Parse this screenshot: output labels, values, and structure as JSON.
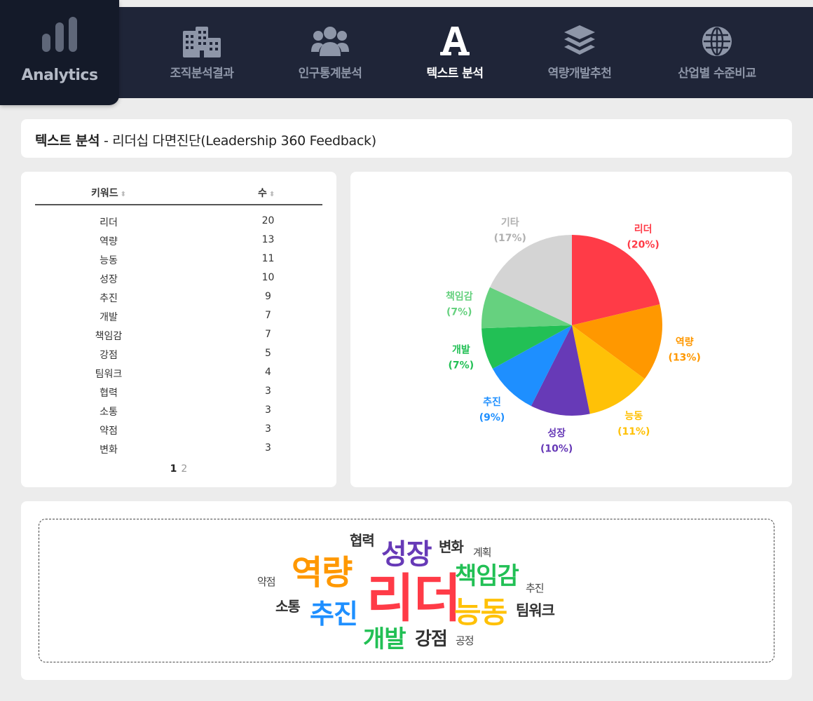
{
  "brand": {
    "label": "Analytics",
    "icon": "bar-chart-icon"
  },
  "nav": [
    {
      "label": "조직분석결과",
      "icon": "building-icon",
      "active": false
    },
    {
      "label": "인구통계분석",
      "icon": "users-icon",
      "active": false
    },
    {
      "label": "텍스트 분석",
      "icon": "font-letter-icon",
      "active": true
    },
    {
      "label": "역량개발추천",
      "icon": "layers-icon",
      "active": false
    },
    {
      "label": "산업별 수준비교",
      "icon": "globe-icon",
      "active": false
    }
  ],
  "page_title": {
    "bold": "텍스트 분석",
    "rest": " - 리더십 다면진단(Leadership 360 Feedback)"
  },
  "table": {
    "headers": {
      "keyword": "키워드",
      "count": "수"
    },
    "rows": [
      {
        "keyword": "리더",
        "count": "20"
      },
      {
        "keyword": "역량",
        "count": "13"
      },
      {
        "keyword": "능동",
        "count": "11"
      },
      {
        "keyword": "성장",
        "count": "10"
      },
      {
        "keyword": "추진",
        "count": "9"
      },
      {
        "keyword": "개발",
        "count": "7"
      },
      {
        "keyword": "책임감",
        "count": "7"
      },
      {
        "keyword": "강점",
        "count": "5"
      },
      {
        "keyword": "팀워크",
        "count": "4"
      },
      {
        "keyword": "협력",
        "count": "3"
      },
      {
        "keyword": "소통",
        "count": "3"
      },
      {
        "keyword": "약점",
        "count": "3"
      },
      {
        "keyword": "변화",
        "count": "3"
      }
    ],
    "pages": [
      "1",
      "2"
    ],
    "current_page": "1"
  },
  "chart_data": {
    "type": "pie",
    "title": "",
    "slices": [
      {
        "label": "리더",
        "pct_label": "(20%)",
        "value": 20,
        "color": "#ff3b47"
      },
      {
        "label": "역량",
        "pct_label": "(13%)",
        "value": 13,
        "color": "#ff9800"
      },
      {
        "label": "능동",
        "pct_label": "(11%)",
        "value": 11,
        "color": "#ffc107"
      },
      {
        "label": "성장",
        "pct_label": "(10%)",
        "value": 10,
        "color": "#673ab7"
      },
      {
        "label": "추진",
        "pct_label": "(9%)",
        "value": 9,
        "color": "#1e8fff"
      },
      {
        "label": "개발",
        "pct_label": "(7%)",
        "value": 7,
        "color": "#22c055"
      },
      {
        "label": "책임감",
        "pct_label": "(7%)",
        "value": 7,
        "color": "#66d17f"
      },
      {
        "label": "기타",
        "pct_label": "(17%)",
        "value": 17,
        "color": "#d4d4d4"
      }
    ]
  },
  "word_cloud": [
    {
      "text": "리더",
      "color": "#ff3b47"
    },
    {
      "text": "역량",
      "color": "#ff9800"
    },
    {
      "text": "성장",
      "color": "#673ab7"
    },
    {
      "text": "책임감",
      "color": "#22c055"
    },
    {
      "text": "능동",
      "color": "#ffc107"
    },
    {
      "text": "추진",
      "color": "#1e8fff"
    },
    {
      "text": "개발",
      "color": "#22c055"
    },
    {
      "text": "강점",
      "color": "#333333"
    },
    {
      "text": "팀워크",
      "color": "#333333"
    },
    {
      "text": "협력",
      "color": "#333333"
    },
    {
      "text": "변화",
      "color": "#333333"
    },
    {
      "text": "소통",
      "color": "#333333"
    },
    {
      "text": "약점",
      "color": "#444444"
    },
    {
      "text": "계획",
      "color": "#444444"
    },
    {
      "text": "추진",
      "color": "#444444"
    },
    {
      "text": "공정",
      "color": "#444444"
    }
  ]
}
